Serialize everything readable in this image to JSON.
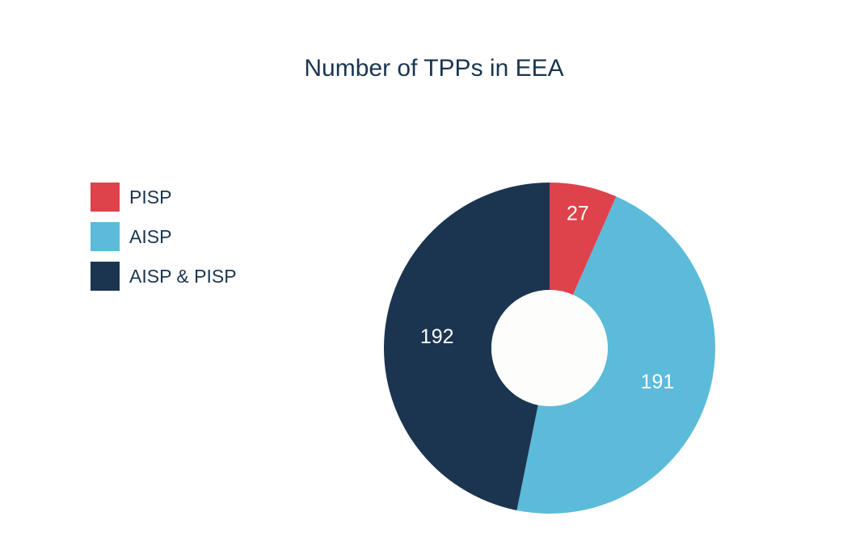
{
  "chart_data": {
    "type": "pie",
    "title": "Number of TPPs in EEA",
    "donut": true,
    "legend_position": "left",
    "slices": [
      {
        "label": "PISP",
        "value": 27,
        "color": "#de424b"
      },
      {
        "label": "AISP",
        "value": 191,
        "color": "#5bbbd9"
      },
      {
        "label": "AISP & PISP",
        "value": 192,
        "color": "#1b3550"
      }
    ]
  }
}
